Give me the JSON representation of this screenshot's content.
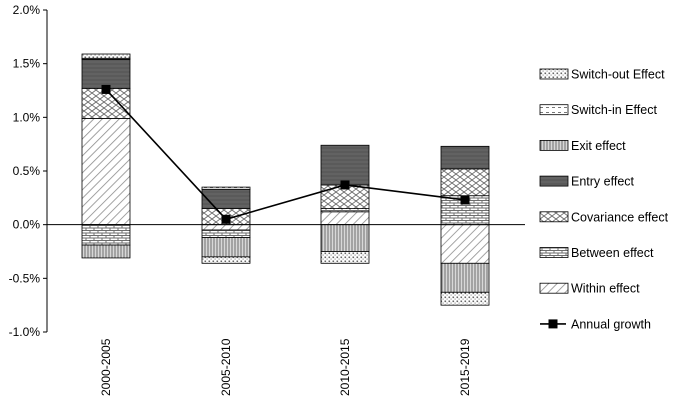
{
  "chart_data": {
    "type": "bar",
    "stacked": true,
    "categories": [
      "2000-2005",
      "2005-2010",
      "2010-2015",
      "2015-2019"
    ],
    "ylim": [
      -0.01,
      0.02
    ],
    "yticks": [
      -0.01,
      -0.005,
      0,
      0.005,
      0.01,
      0.015,
      0.02
    ],
    "ytick_labels": [
      "-1.0%",
      "-0.5%",
      "0.0%",
      "0.5%",
      "1.0%",
      "1.5%",
      "2.0%"
    ],
    "grid": false,
    "legend_position": "right",
    "series": [
      {
        "name": "Within effect",
        "pattern": "diag-wide",
        "values": [
          0.0099,
          -0.0005,
          0.0012,
          -0.0036
        ]
      },
      {
        "name": "Between effect",
        "pattern": "brick",
        "values": [
          -0.0019,
          -0.0007,
          0.0003,
          0.0027
        ]
      },
      {
        "name": "Covariance effect",
        "pattern": "zigzag",
        "values": [
          0.0028,
          0.0015,
          0.0022,
          0.0025
        ]
      },
      {
        "name": "Entry effect",
        "pattern": "solid-dark",
        "values": [
          0.0027,
          0.0018,
          0.0037,
          0.0021
        ]
      },
      {
        "name": "Exit effect",
        "pattern": "vertical",
        "values": [
          -0.0012,
          -0.0018,
          -0.0025,
          -0.0027
        ]
      },
      {
        "name": "Switch-in Effect",
        "pattern": "dash",
        "values": [
          0.0001,
          0.0002,
          0.0,
          0.0
        ]
      },
      {
        "name": "Switch-out Effect",
        "pattern": "dots",
        "values": [
          0.0004,
          -0.0006,
          -0.0011,
          -0.0012
        ]
      }
    ],
    "line_series": {
      "name": "Annual growth",
      "values": [
        0.0126,
        0.0005,
        0.0037,
        0.0023
      ]
    },
    "legend_order": [
      "Switch-out Effect",
      "Switch-in Effect",
      "Exit effect",
      "Entry effect",
      "Covariance effect",
      "Between effect",
      "Within effect",
      "Annual growth"
    ]
  }
}
